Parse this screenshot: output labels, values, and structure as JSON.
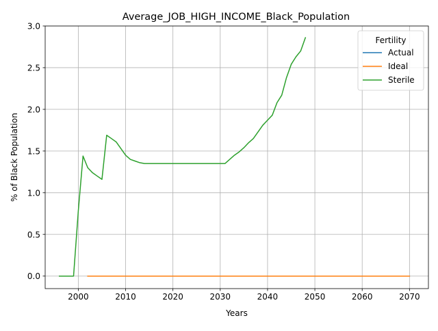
{
  "chart_data": {
    "type": "line",
    "title": "Average_JOB_HIGH_INCOME_Black_Population",
    "xlabel": "Years",
    "ylabel": "% of Black Population",
    "xlim": [
      1993,
      2074
    ],
    "ylim": [
      -0.15,
      3.0
    ],
    "xticks": [
      2000,
      2010,
      2020,
      2030,
      2040,
      2050,
      2060,
      2070
    ],
    "yticks": [
      0.0,
      0.5,
      1.0,
      1.5,
      2.0,
      2.5,
      3.0
    ],
    "xtick_labels": [
      "2000",
      "2010",
      "2020",
      "2030",
      "2040",
      "2050",
      "2060",
      "2070"
    ],
    "ytick_labels": [
      "0.0",
      "0.5",
      "1.0",
      "1.5",
      "2.0",
      "2.5",
      "3.0"
    ],
    "grid": true,
    "legend": {
      "title": "Fertility",
      "position": "top-right"
    },
    "series": [
      {
        "name": "Actual",
        "color": "#1f77b4",
        "x": [
          2002,
          2070
        ],
        "y": [
          0,
          0
        ]
      },
      {
        "name": "Ideal",
        "color": "#ff7f0e",
        "x": [
          2002,
          2070
        ],
        "y": [
          0,
          0
        ]
      },
      {
        "name": "Sterile",
        "color": "#2ca02c",
        "x": [
          1996,
          1997,
          1998,
          1999,
          2000,
          2001,
          2002,
          2003,
          2004,
          2005,
          2006,
          2007,
          2008,
          2009,
          2010,
          2011,
          2012,
          2013,
          2014,
          2015,
          2016,
          2017,
          2018,
          2019,
          2020,
          2021,
          2022,
          2023,
          2024,
          2025,
          2026,
          2027,
          2028,
          2029,
          2030,
          2031,
          2032,
          2033,
          2034,
          2035,
          2036,
          2037,
          2038,
          2039,
          2040,
          2041,
          2042,
          2043,
          2044,
          2045,
          2046,
          2047,
          2048
        ],
        "y": [
          0,
          0,
          0,
          0,
          0.78,
          1.44,
          1.3,
          1.24,
          1.2,
          1.16,
          1.69,
          1.65,
          1.61,
          1.53,
          1.45,
          1.4,
          1.38,
          1.36,
          1.35,
          1.35,
          1.35,
          1.35,
          1.35,
          1.35,
          1.35,
          1.35,
          1.35,
          1.35,
          1.35,
          1.35,
          1.35,
          1.35,
          1.35,
          1.35,
          1.35,
          1.35,
          1.4,
          1.45,
          1.49,
          1.54,
          1.6,
          1.65,
          1.73,
          1.81,
          1.87,
          1.93,
          2.08,
          2.17,
          2.38,
          2.54,
          2.63,
          2.7,
          2.86
        ]
      }
    ]
  }
}
